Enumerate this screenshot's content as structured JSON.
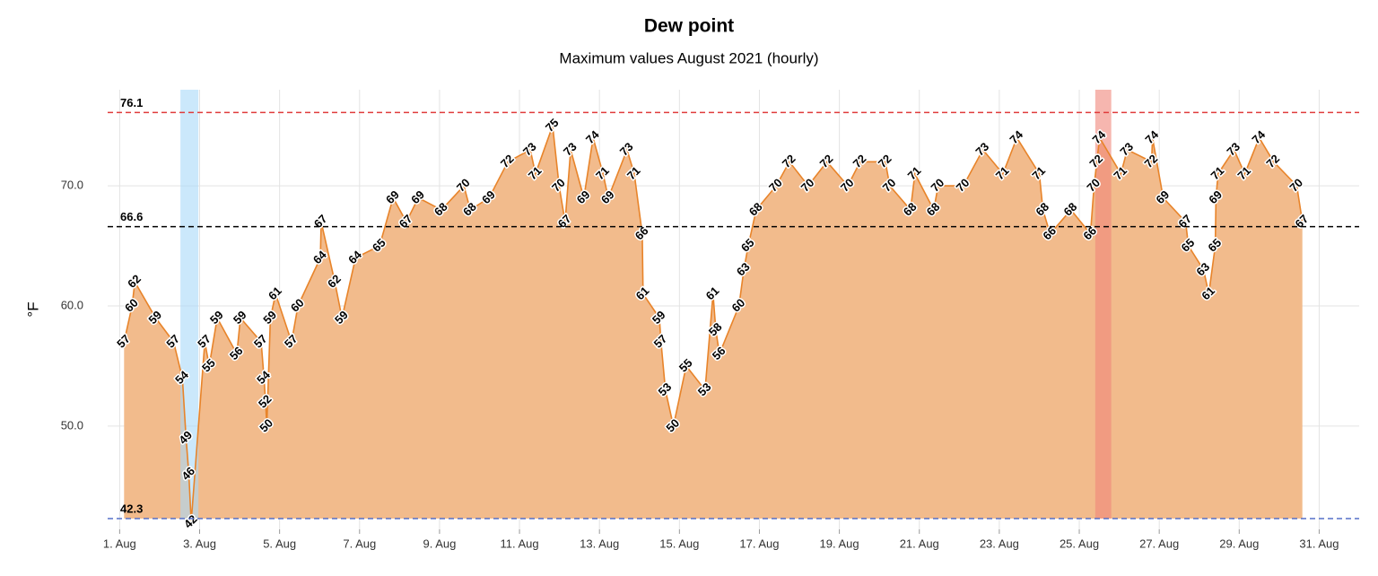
{
  "chart_data": {
    "type": "area",
    "title": "Dew point",
    "subtitle": "Maximum values August 2021 (hourly)",
    "y_label": "°F",
    "xlim": [
      0.7,
      32
    ],
    "ylim": [
      41.4,
      78
    ],
    "xticks": [
      {
        "value": 1,
        "label": "1. Aug"
      },
      {
        "value": 3,
        "label": "3. Aug"
      },
      {
        "value": 5,
        "label": "5. Aug"
      },
      {
        "value": 7,
        "label": "7. Aug"
      },
      {
        "value": 9,
        "label": "9. Aug"
      },
      {
        "value": 11,
        "label": "11. Aug"
      },
      {
        "value": 13,
        "label": "13. Aug"
      },
      {
        "value": 15,
        "label": "15. Aug"
      },
      {
        "value": 17,
        "label": "17. Aug"
      },
      {
        "value": 19,
        "label": "19. Aug"
      },
      {
        "value": 21,
        "label": "21. Aug"
      },
      {
        "value": 23,
        "label": "23. Aug"
      },
      {
        "value": 25,
        "label": "25. Aug"
      },
      {
        "value": 27,
        "label": "27. Aug"
      },
      {
        "value": 29,
        "label": "29. Aug"
      },
      {
        "value": 31,
        "label": "31. Aug"
      }
    ],
    "yticks": [
      {
        "value": 50,
        "label": "50.0"
      },
      {
        "value": 60,
        "label": "60.0"
      },
      {
        "value": 70,
        "label": "70.0"
      }
    ],
    "grid": true,
    "lines": [
      {
        "value": 76.1,
        "color": "#e03c3c"
      },
      {
        "value": 66.6,
        "color": "#000000"
      },
      {
        "value": 42.3,
        "color": "#5570c8"
      }
    ],
    "highlights": [
      {
        "x0": 2.52,
        "x1": 2.97,
        "color": "#a9d9f8"
      },
      {
        "x0": 25.4,
        "x1": 25.8,
        "color": "#f0857a"
      }
    ],
    "series": [
      {
        "color": "#e8842a",
        "fill": "#f2bb8c",
        "x": [
          1.11,
          1.31,
          1.38,
          1.9,
          2.35,
          2.57,
          2.66,
          2.73,
          2.79,
          3.13,
          3.24,
          3.44,
          3.93,
          4.02,
          4.54,
          4.61,
          4.65,
          4.68,
          4.77,
          4.9,
          5.3,
          5.46,
          6.02,
          6.04,
          6.38,
          6.56,
          6.9,
          7.5,
          7.84,
          8.17,
          8.47,
          9.05,
          9.61,
          9.77,
          10.24,
          10.71,
          11.27,
          11.4,
          11.83,
          11.99,
          12.14,
          12.28,
          12.61,
          12.84,
          13.09,
          13.22,
          13.69,
          13.87,
          14.07,
          14.09,
          14.5,
          14.54,
          14.65,
          14.85,
          15.17,
          15.64,
          15.84,
          15.91,
          16.0,
          16.49,
          16.61,
          16.72,
          16.92,
          17.42,
          17.75,
          18.22,
          18.69,
          19.21,
          19.52,
          20.15,
          20.26,
          20.78,
          20.89,
          21.36,
          21.47,
          22.1,
          22.59,
          23.09,
          23.44,
          24.0,
          24.09,
          24.27,
          24.79,
          25.28,
          25.37,
          25.44,
          25.51,
          26.04,
          26.2,
          26.81,
          26.83,
          27.1,
          27.66,
          27.73,
          28.11,
          28.24,
          28.4,
          28.42,
          28.47,
          28.87,
          29.14,
          29.5,
          29.86,
          30.44,
          30.58
        ],
        "values": [
          57,
          60,
          62,
          59,
          57,
          54,
          49,
          46,
          42,
          57,
          55,
          59,
          56,
          59,
          57,
          54,
          52,
          50,
          59,
          61,
          57,
          60,
          64,
          67,
          62,
          59,
          64,
          65,
          69,
          67,
          69,
          68,
          70,
          68,
          69,
          72,
          73,
          71,
          75,
          70,
          67,
          73,
          69,
          74,
          71,
          69,
          73,
          71,
          66,
          61,
          59,
          57,
          53,
          50,
          55,
          53,
          61,
          58,
          56,
          60,
          63,
          65,
          68,
          70,
          72,
          70,
          72,
          70,
          72,
          72,
          70,
          68,
          71,
          68,
          70,
          70,
          73,
          71,
          74,
          71,
          68,
          66,
          68,
          66,
          70,
          72,
          74,
          71,
          73,
          72,
          74,
          69,
          67,
          65,
          63,
          61,
          65,
          69,
          71,
          73,
          71,
          74,
          72,
          70,
          67
        ]
      }
    ]
  }
}
